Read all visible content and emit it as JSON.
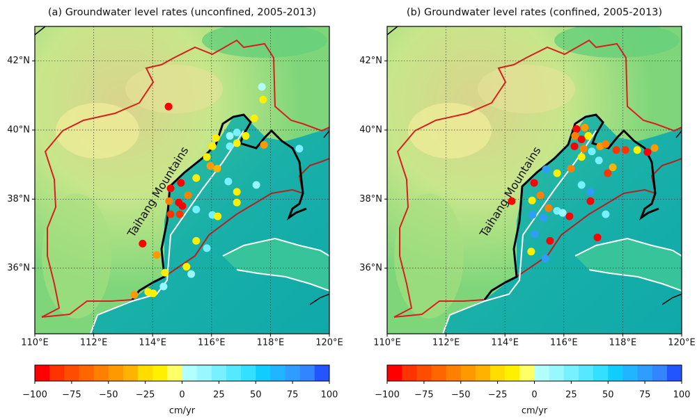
{
  "maps": [
    {
      "title": "(a) Groundwater level rates (unconfined, 2005-2013)",
      "annotation": "Taihang Mountains",
      "xlim": [
        110,
        120
      ],
      "ylim": [
        34.1,
        43.0
      ],
      "xticks": [
        {
          "value": 110,
          "label": "110°E"
        },
        {
          "value": 112,
          "label": "112°E"
        },
        {
          "value": 114,
          "label": "114°E"
        },
        {
          "value": 116,
          "label": "116°E"
        },
        {
          "value": 118,
          "label": "118°E"
        },
        {
          "value": 120,
          "label": "120°E"
        }
      ],
      "yticks": [
        {
          "value": 36,
          "label": "36°N"
        },
        {
          "value": 38,
          "label": "38°N"
        },
        {
          "value": 40,
          "label": "40°N"
        },
        {
          "value": 42,
          "label": "42°N"
        }
      ],
      "points": [
        {
          "lon": 114.54,
          "lat": 40.68,
          "value": -95
        },
        {
          "lon": 117.71,
          "lat": 41.25,
          "value": 5
        },
        {
          "lon": 117.75,
          "lat": 40.88,
          "value": -15
        },
        {
          "lon": 117.45,
          "lat": 40.34,
          "value": -15
        },
        {
          "lon": 117.16,
          "lat": 39.83,
          "value": -15
        },
        {
          "lon": 116.86,
          "lat": 39.93,
          "value": 25
        },
        {
          "lon": 116.62,
          "lat": 39.83,
          "value": 15
        },
        {
          "lon": 116.15,
          "lat": 39.77,
          "value": -15
        },
        {
          "lon": 116.03,
          "lat": 39.53,
          "value": -15
        },
        {
          "lon": 115.84,
          "lat": 39.22,
          "value": -15
        },
        {
          "lon": 115.96,
          "lat": 38.96,
          "value": -45
        },
        {
          "lon": 116.19,
          "lat": 38.88,
          "value": -35
        },
        {
          "lon": 116.62,
          "lat": 39.53,
          "value": 25
        },
        {
          "lon": 117.78,
          "lat": 39.57,
          "value": -45
        },
        {
          "lon": 116.86,
          "lat": 39.62,
          "value": -15
        },
        {
          "lon": 118.98,
          "lat": 39.46,
          "value": 25
        },
        {
          "lon": 115.48,
          "lat": 38.61,
          "value": -15
        },
        {
          "lon": 114.61,
          "lat": 38.31,
          "value": -95
        },
        {
          "lon": 114.96,
          "lat": 38.47,
          "value": -95
        },
        {
          "lon": 115.2,
          "lat": 38.11,
          "value": -55
        },
        {
          "lon": 114.56,
          "lat": 37.94,
          "value": -55
        },
        {
          "lon": 114.89,
          "lat": 37.9,
          "value": -95
        },
        {
          "lon": 115.01,
          "lat": 37.8,
          "value": -95
        },
        {
          "lon": 114.61,
          "lat": 37.56,
          "value": -85
        },
        {
          "lon": 114.92,
          "lat": 37.56,
          "value": -85
        },
        {
          "lon": 115.48,
          "lat": 37.7,
          "value": 25
        },
        {
          "lon": 116.03,
          "lat": 37.54,
          "value": 25
        },
        {
          "lon": 116.21,
          "lat": 37.5,
          "value": -15
        },
        {
          "lon": 116.57,
          "lat": 38.51,
          "value": 25
        },
        {
          "lon": 116.86,
          "lat": 38.21,
          "value": -15
        },
        {
          "lon": 116.86,
          "lat": 37.9,
          "value": -15
        },
        {
          "lon": 117.52,
          "lat": 38.41,
          "value": 15
        },
        {
          "lon": 113.66,
          "lat": 36.71,
          "value": -95
        },
        {
          "lon": 114.14,
          "lat": 36.38,
          "value": -45
        },
        {
          "lon": 114.42,
          "lat": 35.87,
          "value": -15
        },
        {
          "lon": 115.48,
          "lat": 36.79,
          "value": -15
        },
        {
          "lon": 115.84,
          "lat": 36.58,
          "value": 25
        },
        {
          "lon": 115.15,
          "lat": 36.04,
          "value": -15
        },
        {
          "lon": 115.31,
          "lat": 35.83,
          "value": 15
        },
        {
          "lon": 114.02,
          "lat": 35.27,
          "value": -15
        },
        {
          "lon": 113.85,
          "lat": 35.31,
          "value": -15
        },
        {
          "lon": 113.38,
          "lat": 35.23,
          "value": -45
        },
        {
          "lon": 114.37,
          "lat": 35.47,
          "value": 15
        }
      ],
      "colorbar": {
        "lim": [
          -100,
          100
        ],
        "unit": "cm/yr",
        "ticks": [
          {
            "value": -100,
            "label": "−100"
          },
          {
            "value": -75,
            "label": "−75"
          },
          {
            "value": -50,
            "label": "−50"
          },
          {
            "value": -25,
            "label": "−25"
          },
          0,
          25,
          50,
          75,
          100
        ],
        "colors": [
          "#ff0000",
          "#ff3300",
          "#ff4d00",
          "#ff6600",
          "#ff8000",
          "#ff9900",
          "#ffb300",
          "#ffdd00",
          "#fff000",
          "#ffff66",
          "#b3ffff",
          "#99f8ff",
          "#77f0ff",
          "#55e8ff",
          "#33e0ff",
          "#11ccff",
          "#22b5ff",
          "#2f9cff",
          "#3385ff",
          "#2255ff"
        ]
      }
    },
    {
      "title": "(b) Groundwater level rates (confined, 2005-2013)",
      "annotation": "Taihang Mountains",
      "xlim": [
        110,
        120
      ],
      "ylim": [
        34.1,
        43.0
      ],
      "xticks": [
        {
          "value": 110,
          "label": "110°E"
        },
        {
          "value": 112,
          "label": "112°E"
        },
        {
          "value": 114,
          "label": "114°E"
        },
        {
          "value": 116,
          "label": "116°E"
        },
        {
          "value": 118,
          "label": "118°E"
        },
        {
          "value": 120,
          "label": "120°E"
        }
      ],
      "yticks": [
        {
          "value": 36,
          "label": "36°N"
        },
        {
          "value": 38,
          "label": "38°N"
        },
        {
          "value": 40,
          "label": "40°N"
        },
        {
          "value": 42,
          "label": "42°N"
        }
      ],
      "points": [
        {
          "lon": 116.43,
          "lat": 40.03,
          "value": -95
        },
        {
          "lon": 116.71,
          "lat": 40.07,
          "value": -45
        },
        {
          "lon": 116.38,
          "lat": 39.83,
          "value": -55
        },
        {
          "lon": 116.6,
          "lat": 39.73,
          "value": -95
        },
        {
          "lon": 116.83,
          "lat": 39.83,
          "value": -15
        },
        {
          "lon": 116.36,
          "lat": 39.53,
          "value": -95
        },
        {
          "lon": 116.67,
          "lat": 39.46,
          "value": -55
        },
        {
          "lon": 116.95,
          "lat": 39.38,
          "value": 25
        },
        {
          "lon": 117.23,
          "lat": 39.53,
          "value": -45
        },
        {
          "lon": 117.42,
          "lat": 39.59,
          "value": -55
        },
        {
          "lon": 117.78,
          "lat": 39.42,
          "value": -85
        },
        {
          "lon": 118.09,
          "lat": 39.42,
          "value": -85
        },
        {
          "lon": 118.49,
          "lat": 39.42,
          "value": -15
        },
        {
          "lon": 118.84,
          "lat": 39.36,
          "value": -95
        },
        {
          "lon": 119.08,
          "lat": 39.48,
          "value": -45
        },
        {
          "lon": 117.19,
          "lat": 39.12,
          "value": 25
        },
        {
          "lon": 117.49,
          "lat": 38.75,
          "value": -85
        },
        {
          "lon": 117.66,
          "lat": 38.92,
          "value": -35
        },
        {
          "lon": 116.6,
          "lat": 39.22,
          "value": -15
        },
        {
          "lon": 116.24,
          "lat": 38.88,
          "value": -55
        },
        {
          "lon": 115.77,
          "lat": 38.75,
          "value": -15
        },
        {
          "lon": 115.39,
          "lat": 38.86,
          "value": 75
        },
        {
          "lon": 114.99,
          "lat": 38.47,
          "value": -95
        },
        {
          "lon": 115.2,
          "lat": 38.11,
          "value": -55
        },
        {
          "lon": 114.92,
          "lat": 37.96,
          "value": -15
        },
        {
          "lon": 114.23,
          "lat": 37.94,
          "value": -95
        },
        {
          "lon": 115.48,
          "lat": 37.74,
          "value": -55
        },
        {
          "lon": 115.77,
          "lat": 37.66,
          "value": 25
        },
        {
          "lon": 115.96,
          "lat": 37.6,
          "value": 15
        },
        {
          "lon": 116.19,
          "lat": 37.5,
          "value": -95
        },
        {
          "lon": 115.3,
          "lat": 37.46,
          "value": 75
        },
        {
          "lon": 114.94,
          "lat": 37.54,
          "value": 75
        },
        {
          "lon": 116.6,
          "lat": 38.41,
          "value": 25
        },
        {
          "lon": 116.9,
          "lat": 38.21,
          "value": 75
        },
        {
          "lon": 116.9,
          "lat": 37.94,
          "value": -95
        },
        {
          "lon": 117.42,
          "lat": 37.56,
          "value": 25
        },
        {
          "lon": 117.14,
          "lat": 36.89,
          "value": -95
        },
        {
          "lon": 115.53,
          "lat": 36.79,
          "value": -95
        },
        {
          "lon": 115.01,
          "lat": 36.99,
          "value": 75
        },
        {
          "lon": 114.89,
          "lat": 36.48,
          "value": -15
        },
        {
          "lon": 115.37,
          "lat": 36.28,
          "value": 75
        }
      ],
      "colorbar": {
        "lim": [
          -100,
          100
        ],
        "unit": "cm/yr",
        "ticks": [
          {
            "value": -100,
            "label": "−100"
          },
          {
            "value": -75,
            "label": "−75"
          },
          {
            "value": -50,
            "label": "−50"
          },
          {
            "value": -25,
            "label": "−25"
          },
          0,
          25,
          50,
          75,
          100
        ],
        "colors": [
          "#ff0000",
          "#ff3300",
          "#ff4d00",
          "#ff6600",
          "#ff8000",
          "#ff9900",
          "#ffb300",
          "#ffdd00",
          "#fff000",
          "#ffff66",
          "#b3ffff",
          "#99f8ff",
          "#77f0ff",
          "#55e8ff",
          "#33e0ff",
          "#11ccff",
          "#22b5ff",
          "#2f9cff",
          "#3385ff",
          "#2255ff"
        ]
      }
    }
  ]
}
